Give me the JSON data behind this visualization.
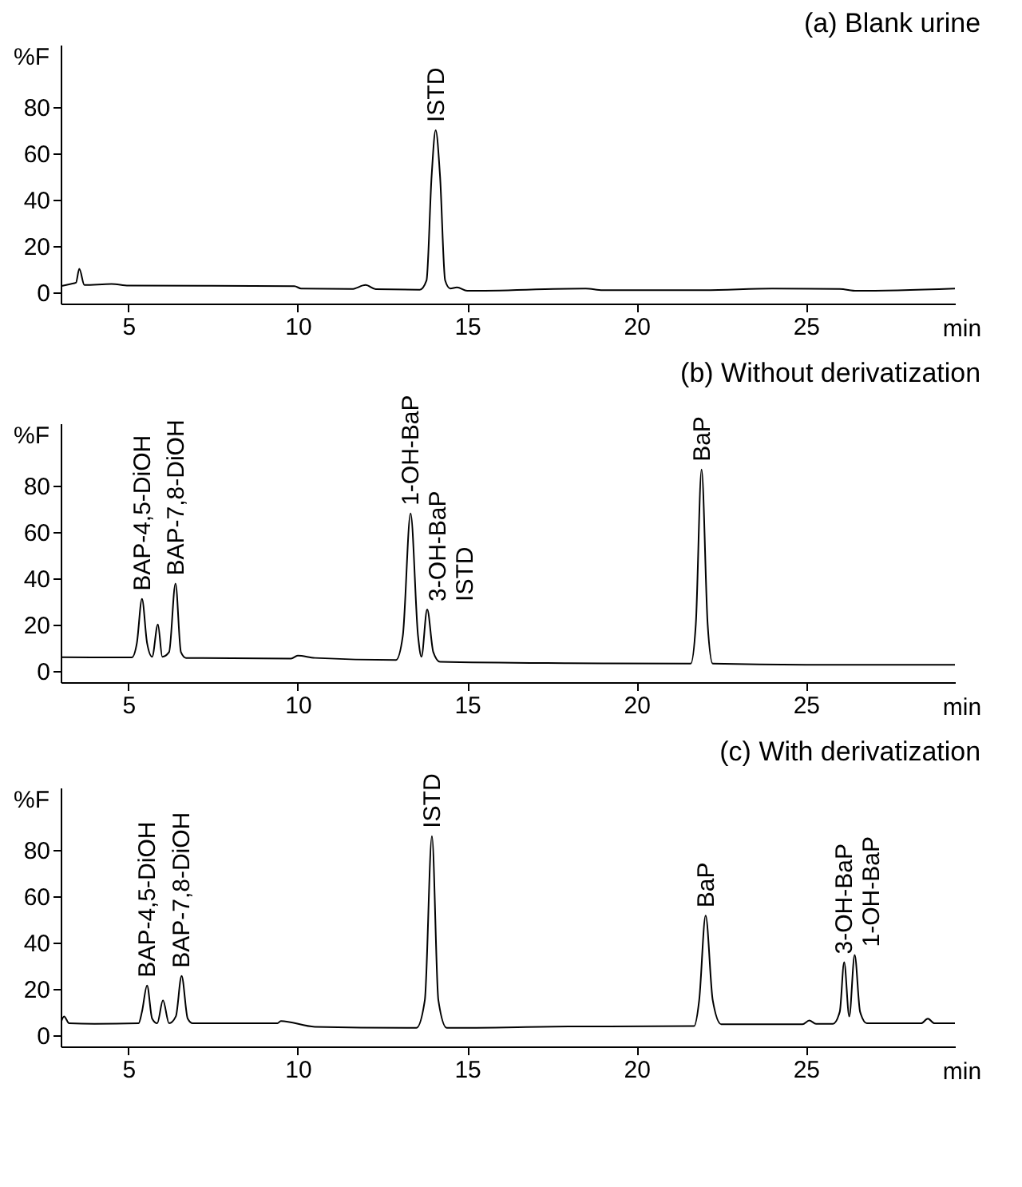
{
  "chart_data": [
    {
      "type": "line",
      "title": "(a) Blank urine",
      "xlabel": "min",
      "ylabel": "%F",
      "xlim": [
        3,
        29.4
      ],
      "ylim": [
        -5,
        107
      ],
      "xticks": [
        5,
        10,
        15,
        20,
        25
      ],
      "yticks": [
        0,
        20,
        40,
        60,
        80
      ],
      "series": [
        {
          "color": "#000000",
          "x": [
            3.0,
            3.3,
            3.45,
            3.55,
            3.7,
            4.5,
            5,
            9.9,
            10.1,
            11.6,
            12.0,
            12.3,
            13.6,
            13.8,
            13.95,
            14.07,
            14.2,
            14.35,
            14.5,
            14.7,
            15,
            18.5,
            19,
            22,
            24,
            26,
            26.5,
            29.4
          ],
          "values": [
            2.5,
            3.5,
            4,
            10,
            3,
            3.5,
            2.8,
            2.5,
            1.5,
            1.3,
            3,
            1.2,
            1,
            5,
            50,
            70,
            50,
            5,
            1.5,
            2,
            0.5,
            1.5,
            0.8,
            0.8,
            1.5,
            1.3,
            0.5,
            1.5
          ]
        }
      ],
      "annotations": [
        {
          "text": "ISTD",
          "x": 14.07,
          "y": 70
        }
      ]
    },
    {
      "type": "line",
      "title": "(b) Without derivatization",
      "xlabel": "min",
      "ylabel": "%F",
      "xlim": [
        3,
        29.4
      ],
      "ylim": [
        -5,
        107
      ],
      "xticks": [
        5,
        10,
        15,
        20,
        25
      ],
      "yticks": [
        0,
        20,
        40,
        60,
        80
      ],
      "series": [
        {
          "color": "#000000",
          "x": [
            3.0,
            5.1,
            5.25,
            5.4,
            5.55,
            5.7,
            5.87,
            6.0,
            6.2,
            6.39,
            6.55,
            6.7,
            9.8,
            10.0,
            10.5,
            12.9,
            13.1,
            13.33,
            13.55,
            13.65,
            13.82,
            14.0,
            14.2,
            18,
            21.6,
            21.75,
            21.92,
            22.1,
            22.25,
            25,
            29.4
          ],
          "values": [
            5.8,
            5.7,
            12,
            31,
            12,
            6,
            20,
            6,
            8,
            37.7,
            8,
            5.5,
            5.2,
            6.5,
            5.5,
            4.6,
            15,
            68,
            15,
            6,
            26.5,
            8,
            3.8,
            3.2,
            3,
            20,
            87,
            20,
            3,
            2.5,
            2.5
          ]
        }
      ],
      "annotations": [
        {
          "text": "BAP-4,5-DiOH",
          "x": 5.4,
          "y": 31
        },
        {
          "text": "BAP-7,8-DiOH",
          "x": 6.39,
          "y": 37.7
        },
        {
          "text": "1-OH-BaP",
          "x": 13.33,
          "y": 68
        },
        {
          "text": "3-OH-BaP",
          "x": 13.82,
          "y": 26.5
        },
        {
          "text": "ISTD",
          "x": 13.82,
          "y": 26.5
        },
        {
          "text": "BaP",
          "x": 21.92,
          "y": 87
        }
      ]
    },
    {
      "type": "line",
      "title": "(c) With derivatization",
      "xlabel": "min",
      "ylabel": "%F",
      "xlim": [
        3,
        29.4
      ],
      "ylim": [
        -5,
        107
      ],
      "xticks": [
        5,
        10,
        15,
        20,
        25
      ],
      "yticks": [
        0,
        20,
        40,
        60,
        80
      ],
      "series": [
        {
          "color": "#000000",
          "x": [
            3.0,
            3.1,
            3.25,
            4,
            5.3,
            5.4,
            5.55,
            5.7,
            5.85,
            6.02,
            6.2,
            6.4,
            6.57,
            6.75,
            6.9,
            9.4,
            9.5,
            10.5,
            13.5,
            13.75,
            13.96,
            14.15,
            14.4,
            18,
            21.7,
            21.85,
            22.04,
            22.25,
            22.5,
            24.9,
            25.1,
            25.3,
            25.8,
            26.0,
            26.13,
            26.28,
            26.44,
            26.6,
            26.8,
            28.4,
            28.6,
            28.8,
            29.4
          ],
          "values": [
            5,
            8,
            5,
            4.8,
            5,
            10,
            21.4,
            7,
            5,
            15,
            5,
            8,
            25.5,
            7,
            5,
            5,
            6,
            3.5,
            3,
            15,
            86,
            15,
            3,
            3.6,
            3.8,
            15,
            51.6,
            15,
            4.6,
            4.6,
            6.2,
            4.8,
            4.8,
            10,
            31.5,
            8,
            34.6,
            10,
            5,
            5,
            7,
            5,
            5
          ]
        }
      ],
      "annotations": [
        {
          "text": "BAP-4,5-DiOH",
          "x": 5.55,
          "y": 21.4
        },
        {
          "text": "BAP-7,8-DiOH",
          "x": 6.57,
          "y": 25.5
        },
        {
          "text": "ISTD",
          "x": 13.96,
          "y": 86
        },
        {
          "text": "BaP",
          "x": 22.04,
          "y": 51.6
        },
        {
          "text": "3-OH-BaP",
          "x": 26.13,
          "y": 31.5
        },
        {
          "text": "1-OH-BaP",
          "x": 26.44,
          "y": 34.6
        }
      ]
    }
  ]
}
